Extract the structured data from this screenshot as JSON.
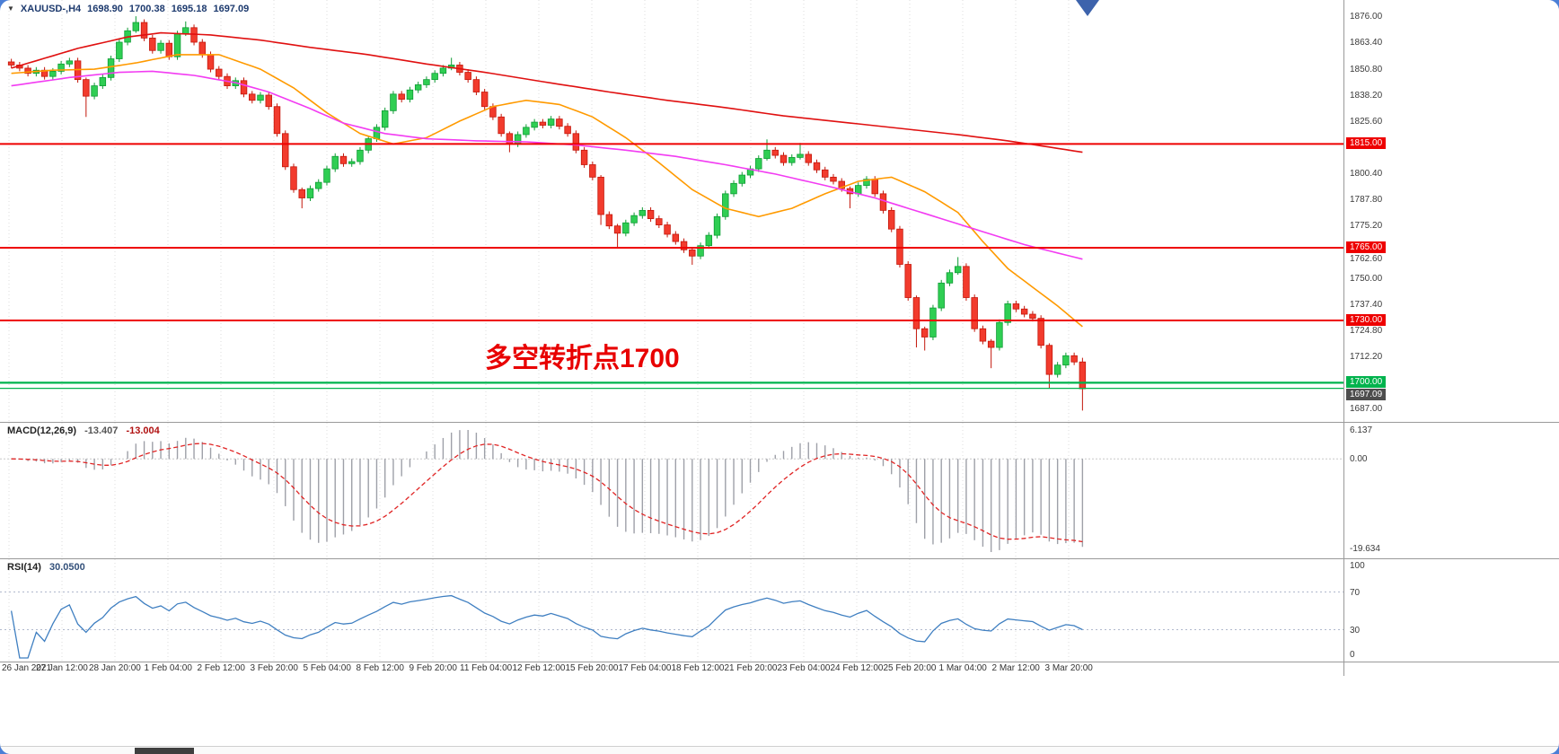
{
  "window": {
    "background_color": "#4b7fd6"
  },
  "header": {
    "symbol": "XAUUSD-,H4",
    "open": "1698.90",
    "high": "1700.38",
    "low": "1695.18",
    "close": "1697.09"
  },
  "chart_data": {
    "type": "candlestick",
    "title": "XAUUSD- H4 chart with MACD and RSI",
    "symbol": "XAUUSD-",
    "timeframe": "H4",
    "price_axis": {
      "min": 1682,
      "max": 1880,
      "tick_labels": [
        "1876.00",
        "1863.40",
        "1850.80",
        "1838.20",
        "1825.60",
        "1800.40",
        "1787.80",
        "1775.20",
        "1762.60",
        "1750.00",
        "1737.40",
        "1724.80",
        "1712.20",
        "1687.00"
      ]
    },
    "x_axis": {
      "labels": [
        "26 Jan 2021",
        "27 Jan 12:00",
        "28 Jan 20:00",
        "1 Feb 04:00",
        "2 Feb 12:00",
        "3 Feb 20:00",
        "5 Feb 04:00",
        "8 Feb 12:00",
        "9 Feb 20:00",
        "11 Feb 04:00",
        "12 Feb 12:00",
        "15 Feb 20:00",
        "17 Feb 04:00",
        "18 Feb 12:00",
        "21 Feb 20:00",
        "23 Feb 04:00",
        "24 Feb 12:00",
        "25 Feb 20:00",
        "1 Mar 04:00",
        "2 Mar 12:00",
        "3 Mar 20:00"
      ]
    },
    "candles": {
      "first_open": 1854.5,
      "closes": [
        1853,
        1851.5,
        1849,
        1850.5,
        1847.5,
        1850,
        1853.5,
        1855,
        1846,
        1838,
        1843,
        1847,
        1856,
        1864,
        1869.5,
        1873.5,
        1866,
        1860,
        1863.5,
        1857,
        1868,
        1871,
        1864,
        1858,
        1851,
        1847.5,
        1843,
        1845.5,
        1839,
        1836,
        1838.5,
        1833,
        1820,
        1804,
        1793,
        1789,
        1793.5,
        1796.5,
        1803,
        1809,
        1805.5,
        1806.5,
        1812,
        1817.5,
        1823,
        1831,
        1839,
        1836.5,
        1841,
        1843.5,
        1846,
        1849,
        1851.5,
        1853,
        1849.5,
        1846,
        1840,
        1833,
        1828,
        1820,
        1815,
        1819.5,
        1823,
        1825.5,
        1824,
        1827,
        1823.5,
        1820,
        1812,
        1805,
        1799,
        1781,
        1775.5,
        1772,
        1777,
        1780.5,
        1783,
        1779,
        1776,
        1771.5,
        1768,
        1764,
        1761,
        1766,
        1771,
        1780,
        1791,
        1796,
        1800,
        1803,
        1808,
        1812,
        1809.5,
        1806,
        1808.5,
        1810,
        1806,
        1802.5,
        1799,
        1797,
        1793.5,
        1791,
        1795,
        1798,
        1791,
        1783,
        1774,
        1757,
        1741,
        1726,
        1722,
        1736,
        1748,
        1753,
        1756,
        1741,
        1726,
        1720,
        1717,
        1729,
        1738,
        1735.5,
        1733,
        1731,
        1718,
        1704,
        1708.5,
        1713,
        1710,
        1697.09
      ],
      "default_wick": 1.5,
      "wicks": {
        "9": [
          1,
          10
        ],
        "15": [
          3,
          1
        ],
        "21": [
          3,
          1
        ],
        "35": [
          1,
          5
        ],
        "53": [
          3.5,
          1
        ],
        "60": [
          1,
          4
        ],
        "71": [
          1,
          5
        ],
        "73": [
          1,
          6.7
        ],
        "82": [
          1,
          4.2
        ],
        "91": [
          5.2,
          1
        ],
        "95": [
          5.5,
          1
        ],
        "101": [
          1,
          7
        ],
        "109": [
          1,
          9
        ],
        "110": [
          1,
          6.5
        ],
        "114": [
          4.5,
          1
        ],
        "118": [
          1,
          10
        ],
        "125": [
          1,
          6.5
        ],
        "129": [
          2,
          10.5
        ]
      }
    },
    "moving_averages": [
      {
        "name": "fast-ma",
        "color": "#ff9a00",
        "points": [
          [
            0,
            1849
          ],
          [
            5,
            1850.5
          ],
          [
            10,
            1851
          ],
          [
            15,
            1854
          ],
          [
            20,
            1858
          ],
          [
            25,
            1858
          ],
          [
            30,
            1851
          ],
          [
            34,
            1842
          ],
          [
            38,
            1830
          ],
          [
            42,
            1820
          ],
          [
            46,
            1815
          ],
          [
            50,
            1818
          ],
          [
            54,
            1826
          ],
          [
            58,
            1833
          ],
          [
            62,
            1836
          ],
          [
            66,
            1834
          ],
          [
            70,
            1828
          ],
          [
            74,
            1818
          ],
          [
            78,
            1806
          ],
          [
            82,
            1793
          ],
          [
            86,
            1784
          ],
          [
            90,
            1780
          ],
          [
            94,
            1784
          ],
          [
            98,
            1791
          ],
          [
            102,
            1797
          ],
          [
            106,
            1799
          ],
          [
            110,
            1792
          ],
          [
            114,
            1782
          ],
          [
            117,
            1768
          ],
          [
            120,
            1755
          ],
          [
            123,
            1746
          ],
          [
            126,
            1737
          ],
          [
            129,
            1727
          ]
        ]
      },
      {
        "name": "mid-ma",
        "color": "#f23cf2",
        "points": [
          [
            0,
            1843
          ],
          [
            7,
            1847
          ],
          [
            13,
            1849.5
          ],
          [
            17,
            1850
          ],
          [
            22,
            1848
          ],
          [
            27,
            1844.5
          ],
          [
            31,
            1840
          ],
          [
            36,
            1832
          ],
          [
            40,
            1825
          ],
          [
            45,
            1820
          ],
          [
            50,
            1817.5
          ],
          [
            56,
            1816.5
          ],
          [
            62,
            1816
          ],
          [
            68,
            1814.5
          ],
          [
            74,
            1812
          ],
          [
            80,
            1809
          ],
          [
            86,
            1805
          ],
          [
            92,
            1800.5
          ],
          [
            98,
            1795
          ],
          [
            104,
            1789
          ],
          [
            110,
            1781.5
          ],
          [
            116,
            1774
          ],
          [
            122,
            1766.5
          ],
          [
            129,
            1759.5
          ]
        ]
      },
      {
        "name": "slow-ma",
        "color": "#e01010",
        "points": [
          [
            0,
            1851.5
          ],
          [
            8,
            1861
          ],
          [
            14,
            1866.5
          ],
          [
            18,
            1868.5
          ],
          [
            24,
            1867.5
          ],
          [
            30,
            1865
          ],
          [
            36,
            1861.5
          ],
          [
            43,
            1858
          ],
          [
            50,
            1853.5
          ],
          [
            57,
            1849.5
          ],
          [
            64,
            1845
          ],
          [
            72,
            1840
          ],
          [
            79,
            1836
          ],
          [
            86,
            1832.5
          ],
          [
            93,
            1828.5
          ],
          [
            100,
            1825.5
          ],
          [
            107,
            1822.5
          ],
          [
            114,
            1819.5
          ],
          [
            120,
            1816.5
          ],
          [
            125,
            1813.5
          ],
          [
            129,
            1811
          ]
        ]
      }
    ],
    "levels": [
      {
        "price": 1815.0,
        "label": "1815.00",
        "color": "#ee0000",
        "width": 2
      },
      {
        "price": 1765.0,
        "label": "1765.00",
        "color": "#ee0000",
        "width": 2
      },
      {
        "price": 1730.0,
        "label": "1730.00",
        "color": "#ee0000",
        "width": 2
      },
      {
        "price": 1700.0,
        "label": "1700.00",
        "color": "#00b34d",
        "width": 2.2
      },
      {
        "price": 1697.3,
        "label": null,
        "color": "#00b34d",
        "width": 1.3
      }
    ],
    "bid": {
      "price": 1697.09,
      "label": "1697.09",
      "badge_bg": "#4d4d4d"
    },
    "annotation": {
      "text": "多空转折点1700",
      "color": "#e80000"
    },
    "colors": {
      "bull": {
        "fill": "#2fce53",
        "stroke": "#0e9c34"
      },
      "bear": {
        "fill": "#f23b2d",
        "stroke": "#c3170b"
      },
      "grid": "#dcdcdc"
    },
    "macd": {
      "name": "MACD(12,26,9)",
      "main_value": "-13.407",
      "signal_value": "-13.004",
      "axis_labels": [
        "6.137",
        "0.00",
        "-19.634"
      ],
      "histogram_color": "#9ea0a8",
      "signal_color": "#e02424"
    },
    "rsi": {
      "name": "RSI(14)",
      "value": "30.0500",
      "axis_labels": [
        "100",
        "70",
        "30",
        "0"
      ],
      "levels": [
        70,
        30
      ],
      "line_color": "#3f7fc1"
    }
  }
}
